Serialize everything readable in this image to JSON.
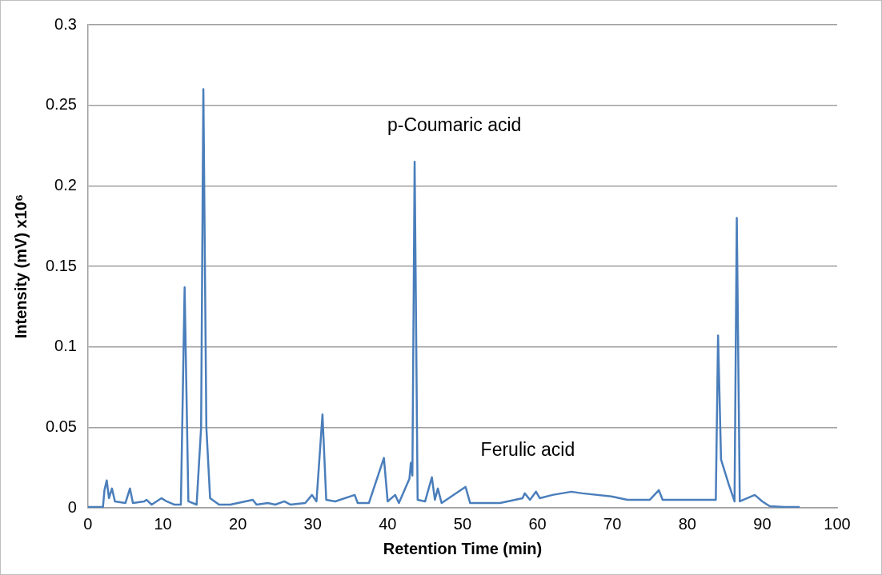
{
  "chart_data": {
    "type": "line",
    "xlabel": "Retention Time (min)",
    "ylabel": "Intensity (mV) x10⁶",
    "x": [
      0,
      2.0,
      2.2,
      2.5,
      2.8,
      3.2,
      3.6,
      5.0,
      5.6,
      6.0,
      7.5,
      7.8,
      8.5,
      9.8,
      10.5,
      11.5,
      12.4,
      12.9,
      13.4,
      14.5,
      15.1,
      15.4,
      15.8,
      16.3,
      17.5,
      19,
      22,
      22.5,
      24,
      25,
      26.2,
      27,
      29,
      29.9,
      30.5,
      31.3,
      31.8,
      33,
      35.6,
      36,
      37.5,
      39.5,
      40,
      41,
      41.5,
      42.9,
      43.1,
      43.3,
      43.6,
      44,
      45,
      45.9,
      46.3,
      46.7,
      47.2,
      50.4,
      51,
      55,
      58,
      58.3,
      59,
      59.8,
      60.3,
      62,
      64.5,
      66,
      70,
      72,
      75,
      76.2,
      76.7,
      80,
      83.8,
      84.1,
      84.5,
      85.5,
      86.3,
      86.6,
      87,
      88,
      89,
      90,
      91,
      93,
      95
    ],
    "series": [
      {
        "color": "#4a7ebb",
        "values": [
          0.0005,
          0.0005,
          0.011,
          0.017,
          0.006,
          0.012,
          0.004,
          0.003,
          0.012,
          0.003,
          0.004,
          0.005,
          0.002,
          0.006,
          0.004,
          0.002,
          0.002,
          0.137,
          0.004,
          0.002,
          0.05,
          0.26,
          0.05,
          0.006,
          0.002,
          0.002,
          0.005,
          0.002,
          0.003,
          0.002,
          0.004,
          0.002,
          0.003,
          0.008,
          0.004,
          0.058,
          0.005,
          0.004,
          0.008,
          0.003,
          0.003,
          0.031,
          0.004,
          0.008,
          0.003,
          0.018,
          0.028,
          0.02,
          0.215,
          0.005,
          0.004,
          0.019,
          0.005,
          0.012,
          0.003,
          0.013,
          0.003,
          0.003,
          0.006,
          0.009,
          0.005,
          0.01,
          0.006,
          0.008,
          0.01,
          0.009,
          0.007,
          0.005,
          0.005,
          0.011,
          0.005,
          0.005,
          0.005,
          0.107,
          0.03,
          0.015,
          0.004,
          0.18,
          0.004,
          0.006,
          0.008,
          0.004,
          0.001,
          0.0005,
          0.0005
        ]
      }
    ],
    "xlim": [
      0,
      100
    ],
    "xticks": [
      0,
      10,
      20,
      30,
      40,
      50,
      60,
      70,
      80,
      90,
      100
    ],
    "ylim": [
      0,
      0.3
    ],
    "yticks": [
      0,
      0.05,
      0.1,
      0.15,
      0.2,
      0.25,
      0.3
    ],
    "grid": "y",
    "legend": false,
    "marker": "none",
    "line_style": "solid",
    "annotations": [
      "p-Coumaric acid",
      "Ferulic acid"
    ]
  }
}
